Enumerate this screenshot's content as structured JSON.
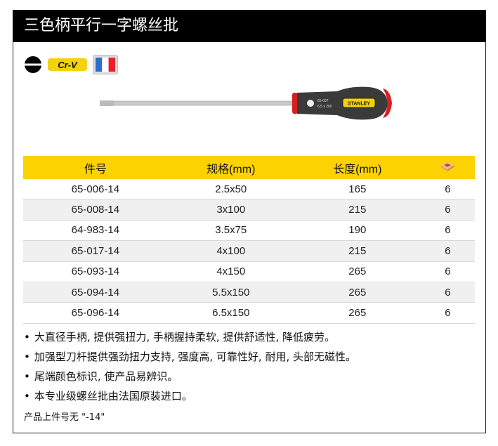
{
  "title": "三色柄平行一字螺丝批",
  "badges": {
    "tip_icon": "slotted-tip-icon",
    "material": "Cr-V",
    "origin_flag": "france-flag-icon"
  },
  "product_image": {
    "brand": "STANLEY",
    "handle_text": [
      "65-097",
      "6.5 x 200"
    ]
  },
  "table": {
    "headers": [
      "件号",
      "规格(mm)",
      "长度(mm)"
    ],
    "pack_icon": "box-icon",
    "rows": [
      [
        "65-006-14",
        "2.5x50",
        "165",
        "6"
      ],
      [
        "65-008-14",
        "3x100",
        "215",
        "6"
      ],
      [
        "64-983-14",
        "3.5x75",
        "190",
        "6"
      ],
      [
        "65-017-14",
        "4x100",
        "215",
        "6"
      ],
      [
        "65-093-14",
        "4x150",
        "265",
        "6"
      ],
      [
        "65-094-14",
        "5.5x150",
        "265",
        "6"
      ],
      [
        "65-096-14",
        "6.5x150",
        "265",
        "6"
      ]
    ]
  },
  "features": [
    "大直径手柄, 提供强扭力, 手柄握持柔软, 提供舒适性, 降低疲劳。",
    "加强型刀杆提供强劲扭力支持, 强度高, 可靠性好, 耐用, 头部无磁性。",
    "尾端颜色标识, 使产品易辨识。",
    "本专业级螺丝批由法国原装进口。"
  ],
  "note": "产品上件号无 \"-14\"",
  "colors": {
    "header_yellow": "#fcd200",
    "title_bg": "#000000"
  }
}
